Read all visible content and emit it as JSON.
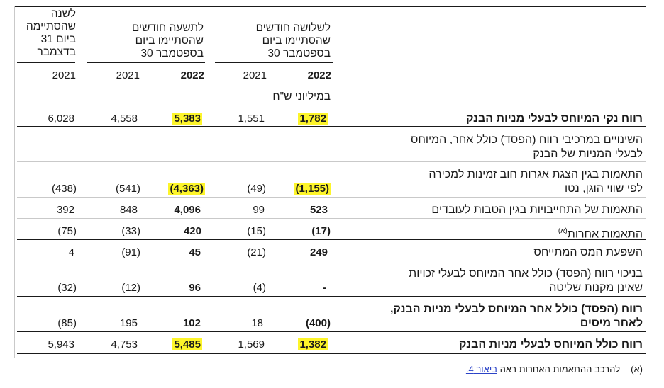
{
  "headers": {
    "three_months": [
      "לשלושה חודשים",
      "שהסתיימו ביום",
      "30 בספטמבר"
    ],
    "nine_months": [
      "לתשעה חודשים",
      "שהסתיימו ביום",
      "30 בספטמבר"
    ],
    "year": [
      "לשנה",
      "שהסתיימה",
      "ביום 31",
      "בדצמבר"
    ],
    "years": {
      "q_2022": "2022",
      "q_2021": "2021",
      "n_2022": "2022",
      "n_2021": "2021",
      "y_2021": "2021"
    },
    "unit": "במיליוני ש\"ח"
  },
  "rows": [
    {
      "label": "רווח נקי המיוחס לבעלי מניות הבנק",
      "q22": "1,782",
      "q21": "1,551",
      "n22": "5,383",
      "n21": "4,558",
      "y21": "6,028"
    },
    {
      "label_line1": "השינויים במרכיבי רווח (הפסד) כולל אחר, המיוחס",
      "label_line2": "לבעלי המניות של הבנק"
    },
    {
      "label_line1": "התאמות בגין הצגת אגרות חוב זמינות למכירה",
      "label_line2": "לפי שווי הוגן, נטו",
      "q22": "(1,155)",
      "q21": "(49)",
      "n22": "(4,363)",
      "n21": "(541)",
      "y21": "(438)"
    },
    {
      "label": "התאמות של התחייבויות בגין הטבות לעובדים",
      "q22": "523",
      "q21": "99",
      "n22": "4,096",
      "n21": "848",
      "y21": "392"
    },
    {
      "label": "התאמות אחרות",
      "sup": "(א)",
      "q22": "(17)",
      "q21": "(15)",
      "n22": "420",
      "n21": "(33)",
      "y21": "(75)"
    },
    {
      "label": "השפעת המס המתייחס",
      "q22": "249",
      "q21": "(21)",
      "n22": "45",
      "n21": "(91)",
      "y21": "4"
    },
    {
      "label_line1": "בניכוי רווח (הפסד) כולל אחר המיוחס לבעלי זכויות",
      "label_line2": "שאינן מקנות שליטה",
      "q22": "-",
      "q21": "(4)",
      "n22": "96",
      "n21": "(12)",
      "y21": "(32)"
    },
    {
      "label_line1": "רווח (הפסד) כולל אחר המיוחס לבעלי מניות הבנק,",
      "label_line2": "לאחר מיסים",
      "q22": "(400)",
      "q21": "18",
      "n22": "102",
      "n21": "195",
      "y21": "(85)"
    },
    {
      "label": "רווח כולל המיוחס לבעלי מניות הבנק",
      "q22": "1,382",
      "q21": "1,569",
      "n22": "5,485",
      "n21": "4,753",
      "y21": "5,943"
    }
  ],
  "footnote": {
    "marker": "(א)",
    "text": "להרכב ההתאמות האחרות ראה",
    "link": "ביאור 4."
  },
  "colors": {
    "highlight": "#fdf52a",
    "link": "#2b43c7",
    "rule_light": "#c9c9c9",
    "rule_dark": "#1a1a1a"
  }
}
